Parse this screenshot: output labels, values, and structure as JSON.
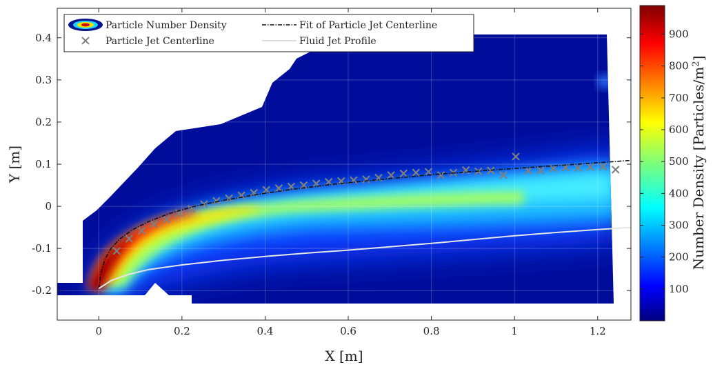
{
  "chart_data": {
    "type": "heatmap",
    "title": "",
    "xlabel": "X [m]",
    "ylabel": "Y [m]",
    "xlim": [
      -0.1,
      1.28
    ],
    "ylim": [
      -0.27,
      0.47
    ],
    "xticks": [
      0,
      0.2,
      0.4,
      0.6,
      0.8,
      1,
      1.2
    ],
    "xtick_labels": [
      "0",
      "0.2",
      "0.4",
      "0.6",
      "0.8",
      "1",
      "1.2"
    ],
    "yticks": [
      -0.2,
      -0.1,
      0,
      0.1,
      0.2,
      0.3,
      0.4
    ],
    "ytick_labels": [
      "-0.2",
      "-0.1",
      "0",
      "0.1",
      "0.2",
      "0.3",
      "0.4"
    ],
    "grid": true,
    "colormap": "jet",
    "colorbar": {
      "label": "Number Density [Particles/m",
      "label_superscript": "2",
      "label_close": "]",
      "range": [
        0,
        990
      ],
      "ticks": [
        100,
        200,
        300,
        400,
        500,
        600,
        700,
        800,
        900
      ],
      "tick_labels": [
        "100",
        "200",
        "300",
        "400",
        "500",
        "600",
        "700",
        "800",
        "900"
      ]
    },
    "legend": {
      "placement": "top-left",
      "entries": [
        "Particle Number Density",
        "Fit of Particle Jet Centerline",
        "Particle Jet Centerline",
        "Fluid Jet Profile"
      ]
    },
    "series": [
      {
        "name": "Particle Jet Centerline",
        "style": "markers-x",
        "color": "#808080",
        "x": [
          0.043,
          0.073,
          0.103,
          0.133,
          0.163,
          0.193,
          0.223,
          0.253,
          0.283,
          0.313,
          0.343,
          0.373,
          0.403,
          0.433,
          0.463,
          0.493,
          0.523,
          0.553,
          0.583,
          0.613,
          0.643,
          0.673,
          0.703,
          0.733,
          0.763,
          0.793,
          0.823,
          0.853,
          0.883,
          0.913,
          0.943,
          0.973,
          1.003,
          1.033,
          1.063,
          1.093,
          1.123,
          1.153,
          1.183,
          1.213,
          1.243
        ],
        "y": [
          -0.106,
          -0.077,
          -0.058,
          -0.042,
          -0.031,
          -0.016,
          -0.006,
          0.005,
          0.013,
          0.019,
          0.026,
          0.032,
          0.039,
          0.043,
          0.047,
          0.05,
          0.054,
          0.058,
          0.06,
          0.062,
          0.064,
          0.068,
          0.074,
          0.078,
          0.08,
          0.082,
          0.074,
          0.08,
          0.086,
          0.083,
          0.085,
          0.074,
          0.118,
          0.085,
          0.085,
          0.09,
          0.092,
          0.091,
          0.093,
          0.094,
          0.087
        ]
      },
      {
        "name": "Fit of Particle Jet Centerline",
        "style": "dash-dot",
        "color": "#111111",
        "x": [
          0.0,
          0.005,
          0.015,
          0.03,
          0.05,
          0.08,
          0.12,
          0.17,
          0.23,
          0.3,
          0.38,
          0.47,
          0.57,
          0.68,
          0.8,
          0.93,
          1.06,
          1.18,
          1.28
        ],
        "y": [
          -0.195,
          -0.16,
          -0.125,
          -0.099,
          -0.078,
          -0.056,
          -0.036,
          -0.017,
          0.0,
          0.014,
          0.028,
          0.041,
          0.053,
          0.064,
          0.075,
          0.085,
          0.094,
          0.102,
          0.109
        ]
      },
      {
        "name": "Fluid Jet Profile",
        "style": "line",
        "color": "#e6e6e6",
        "x": [
          0.0,
          0.03,
          0.07,
          0.12,
          0.2,
          0.3,
          0.4,
          0.5,
          0.6,
          0.7,
          0.8,
          0.9,
          1.0,
          1.1,
          1.2,
          1.28
        ],
        "y": [
          -0.195,
          -0.176,
          -0.162,
          -0.15,
          -0.139,
          -0.128,
          -0.119,
          -0.111,
          -0.104,
          -0.096,
          -0.088,
          -0.079,
          -0.07,
          -0.062,
          -0.055,
          -0.05
        ]
      }
    ]
  }
}
